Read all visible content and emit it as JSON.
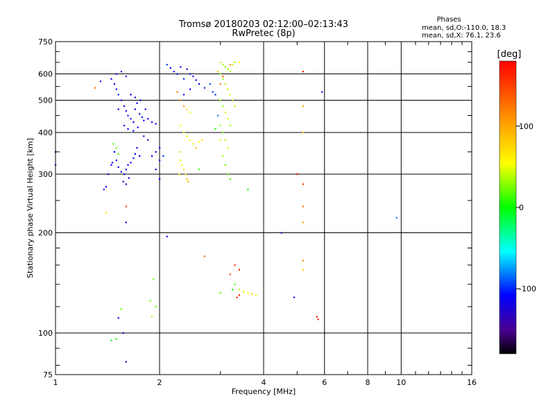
{
  "chart_data": {
    "type": "scatter",
    "title": "Tromsø 20180203 02:12:00–02:13:43",
    "subtitle": "RwPretec (8p)",
    "xlabel": "Frequency [MHz]",
    "ylabel": "Stationary phase Virtual Height [km]",
    "x_scale": "log",
    "y_scale": "log",
    "xlim": [
      1,
      16
    ],
    "ylim": [
      75,
      750
    ],
    "x_ticks": [
      1,
      2,
      4,
      6,
      8,
      10,
      16
    ],
    "x_tick_labels": [
      "1",
      "2",
      "4",
      "6",
      "8",
      "10",
      "16"
    ],
    "x_minor": [
      3,
      5,
      7,
      9,
      11,
      12,
      13,
      14,
      15
    ],
    "y_ticks": [
      75,
      100,
      200,
      300,
      400,
      500,
      600,
      750
    ],
    "y_tick_labels": [
      "75",
      "100",
      "200",
      "300",
      "400",
      "500",
      "600",
      "750"
    ],
    "grid": true,
    "stats_header": "Phases",
    "stats_lines": [
      "mean, sd,O:-110.0, 18.3",
      "mean, sd,X:  76.1, 23.6"
    ],
    "colorbar": {
      "label": "[deg]",
      "range": [
        -180,
        180
      ],
      "ticks": [
        100,
        0,
        -100
      ],
      "tick_labels": [
        "100",
        "0",
        "-100"
      ]
    },
    "series_color_encoding": "phase_deg",
    "points": [
      [
        1.45,
        580,
        -110
      ],
      [
        1.48,
        560,
        -120
      ],
      [
        1.5,
        540,
        -115
      ],
      [
        1.52,
        520,
        -105
      ],
      [
        1.55,
        500,
        -110
      ],
      [
        1.58,
        480,
        -125
      ],
      [
        1.6,
        465,
        -112
      ],
      [
        1.62,
        450,
        -118
      ],
      [
        1.65,
        440,
        -108
      ],
      [
        1.68,
        430,
        -115
      ],
      [
        1.7,
        470,
        -120
      ],
      [
        1.72,
        490,
        -110
      ],
      [
        1.75,
        455,
        -118
      ],
      [
        1.78,
        445,
        -105
      ],
      [
        1.8,
        435,
        -112
      ],
      [
        1.85,
        440,
        -120
      ],
      [
        1.9,
        430,
        -110
      ],
      [
        1.95,
        425,
        -115
      ],
      [
        1.5,
        600,
        -110
      ],
      [
        1.55,
        610,
        -120
      ],
      [
        1.6,
        590,
        -105
      ],
      [
        1.65,
        520,
        -115
      ],
      [
        1.7,
        510,
        -125
      ],
      [
        1.52,
        470,
        -110
      ],
      [
        1.58,
        420,
        -115
      ],
      [
        1.62,
        410,
        -108
      ],
      [
        1.68,
        405,
        -112
      ],
      [
        1.73,
        415,
        -118
      ],
      [
        1.76,
        500,
        -110
      ],
      [
        1.82,
        470,
        -114
      ],
      [
        1.48,
        350,
        -110
      ],
      [
        1.5,
        330,
        -115
      ],
      [
        1.52,
        315,
        -120
      ],
      [
        1.55,
        305,
        -108
      ],
      [
        1.58,
        300,
        -112
      ],
      [
        1.6,
        310,
        -118
      ],
      [
        1.62,
        320,
        -110
      ],
      [
        1.65,
        325,
        -115
      ],
      [
        1.68,
        335,
        -105
      ],
      [
        1.7,
        345,
        -112
      ],
      [
        1.72,
        360,
        -120
      ],
      [
        1.75,
        340,
        -110
      ],
      [
        1.57,
        285,
        -125
      ],
      [
        1.6,
        280,
        -115
      ],
      [
        1.63,
        292,
        -110
      ],
      [
        1.45,
        320,
        -110
      ],
      [
        1.42,
        300,
        -115
      ],
      [
        1.4,
        275,
        -112
      ],
      [
        1.38,
        270,
        -118
      ],
      [
        1.47,
        370,
        30
      ],
      [
        1.5,
        360,
        40
      ],
      [
        1.52,
        345,
        20
      ],
      [
        1.35,
        570,
        -110
      ],
      [
        1.3,
        545,
        140
      ],
      [
        1.46,
        325,
        -115
      ],
      [
        1.85,
        380,
        -120
      ],
      [
        1.9,
        340,
        -110
      ],
      [
        1.95,
        350,
        -112
      ],
      [
        2.0,
        360,
        -105
      ],
      [
        1.8,
        390,
        -115
      ],
      [
        2.1,
        640,
        -100
      ],
      [
        2.15,
        625,
        -115
      ],
      [
        2.2,
        610,
        -108
      ],
      [
        2.25,
        600,
        -112
      ],
      [
        2.3,
        630,
        -105
      ],
      [
        2.35,
        580,
        -100
      ],
      [
        2.4,
        620,
        -110
      ],
      [
        2.45,
        600,
        -108
      ],
      [
        2.5,
        590,
        -115
      ],
      [
        2.55,
        575,
        -110
      ],
      [
        2.6,
        560,
        -112
      ],
      [
        2.7,
        545,
        -100
      ],
      [
        2.8,
        560,
        -90
      ],
      [
        2.85,
        530,
        -95
      ],
      [
        2.9,
        520,
        -100
      ],
      [
        2.25,
        530,
        140
      ],
      [
        2.3,
        500,
        130
      ],
      [
        2.35,
        480,
        120
      ],
      [
        2.4,
        470,
        100
      ],
      [
        2.45,
        460,
        90
      ],
      [
        2.3,
        420,
        90
      ],
      [
        2.35,
        400,
        85
      ],
      [
        2.4,
        390,
        80
      ],
      [
        2.45,
        380,
        95
      ],
      [
        2.5,
        370,
        100
      ],
      [
        2.55,
        360,
        110
      ],
      [
        2.6,
        375,
        90
      ],
      [
        2.65,
        380,
        100
      ],
      [
        2.3,
        330,
        80
      ],
      [
        2.32,
        320,
        90
      ],
      [
        2.35,
        310,
        95
      ],
      [
        2.38,
        300,
        100
      ],
      [
        2.4,
        290,
        110
      ],
      [
        2.42,
        285,
        115
      ],
      [
        2.28,
        300,
        85
      ],
      [
        2.0,
        330,
        -110
      ],
      [
        2.05,
        340,
        -100
      ],
      [
        1.95,
        310,
        -115
      ],
      [
        2.6,
        310,
        20
      ],
      [
        2.3,
        350,
        60
      ],
      [
        3.0,
        650,
        60
      ],
      [
        3.05,
        640,
        55
      ],
      [
        3.1,
        630,
        50
      ],
      [
        3.15,
        620,
        45
      ],
      [
        3.2,
        610,
        60
      ],
      [
        3.25,
        640,
        70
      ],
      [
        3.3,
        650,
        55
      ],
      [
        3.0,
        600,
        40
      ],
      [
        3.05,
        580,
        50
      ],
      [
        3.1,
        560,
        60
      ],
      [
        3.15,
        540,
        65
      ],
      [
        3.2,
        520,
        70
      ],
      [
        3.25,
        500,
        60
      ],
      [
        3.3,
        480,
        55
      ],
      [
        3.0,
        500,
        50
      ],
      [
        3.05,
        480,
        45
      ],
      [
        3.1,
        460,
        60
      ],
      [
        3.15,
        440,
        70
      ],
      [
        3.2,
        420,
        55
      ],
      [
        3.0,
        420,
        50
      ],
      [
        3.05,
        400,
        45
      ],
      [
        3.1,
        380,
        60
      ],
      [
        3.15,
        360,
        70
      ],
      [
        3.0,
        380,
        65
      ],
      [
        3.05,
        340,
        55
      ],
      [
        3.1,
        320,
        40
      ],
      [
        3.15,
        300,
        30
      ],
      [
        3.2,
        290,
        20
      ],
      [
        2.95,
        450,
        -80
      ],
      [
        2.9,
        410,
        10
      ],
      [
        3.0,
        560,
        140
      ],
      [
        3.05,
        590,
        150
      ],
      [
        3.2,
        640,
        130
      ],
      [
        3.4,
        650,
        90
      ],
      [
        2.95,
        610,
        110
      ],
      [
        3.25,
        135,
        10
      ],
      [
        3.3,
        140,
        20
      ],
      [
        3.4,
        135,
        60
      ],
      [
        3.5,
        133,
        80
      ],
      [
        3.6,
        132,
        90
      ],
      [
        3.7,
        131,
        100
      ],
      [
        3.8,
        130,
        95
      ],
      [
        3.4,
        130,
        170
      ],
      [
        3.35,
        128,
        175
      ],
      [
        3.0,
        132,
        30
      ],
      [
        3.2,
        150,
        150
      ],
      [
        3.3,
        160,
        160
      ],
      [
        3.4,
        155,
        165
      ],
      [
        2.7,
        170,
        140
      ],
      [
        3.6,
        270,
        0
      ],
      [
        4.5,
        200,
        -140
      ],
      [
        4.9,
        128,
        -120
      ],
      [
        5.2,
        610,
        170
      ],
      [
        5.2,
        480,
        120
      ],
      [
        5.2,
        400,
        110
      ],
      [
        5.0,
        300,
        175
      ],
      [
        5.2,
        280,
        160
      ],
      [
        5.2,
        240,
        140
      ],
      [
        5.2,
        215,
        120
      ],
      [
        5.2,
        165,
        130
      ],
      [
        5.2,
        155,
        110
      ],
      [
        5.7,
        112,
        170
      ],
      [
        5.75,
        110,
        175
      ],
      [
        5.9,
        530,
        -120
      ],
      [
        9.7,
        222,
        -80
      ],
      [
        2.1,
        195,
        -110
      ],
      [
        1.92,
        145,
        40
      ],
      [
        1.88,
        125,
        40
      ],
      [
        1.95,
        120,
        30
      ],
      [
        1.9,
        112,
        50
      ],
      [
        1.55,
        118,
        30
      ],
      [
        1.52,
        111,
        -110
      ],
      [
        1.57,
        100,
        -130
      ],
      [
        1.5,
        96,
        0
      ],
      [
        1.45,
        95,
        -10
      ],
      [
        1.6,
        82,
        -130
      ],
      [
        1.4,
        230,
        100
      ],
      [
        1.6,
        240,
        150
      ],
      [
        1.6,
        215,
        -115
      ],
      [
        1.0,
        350,
        -110
      ],
      [
        1.0,
        320,
        -100
      ],
      [
        2.0,
        290,
        -115
      ],
      [
        2.35,
        520,
        -120
      ],
      [
        2.45,
        540,
        -110
      ]
    ]
  }
}
